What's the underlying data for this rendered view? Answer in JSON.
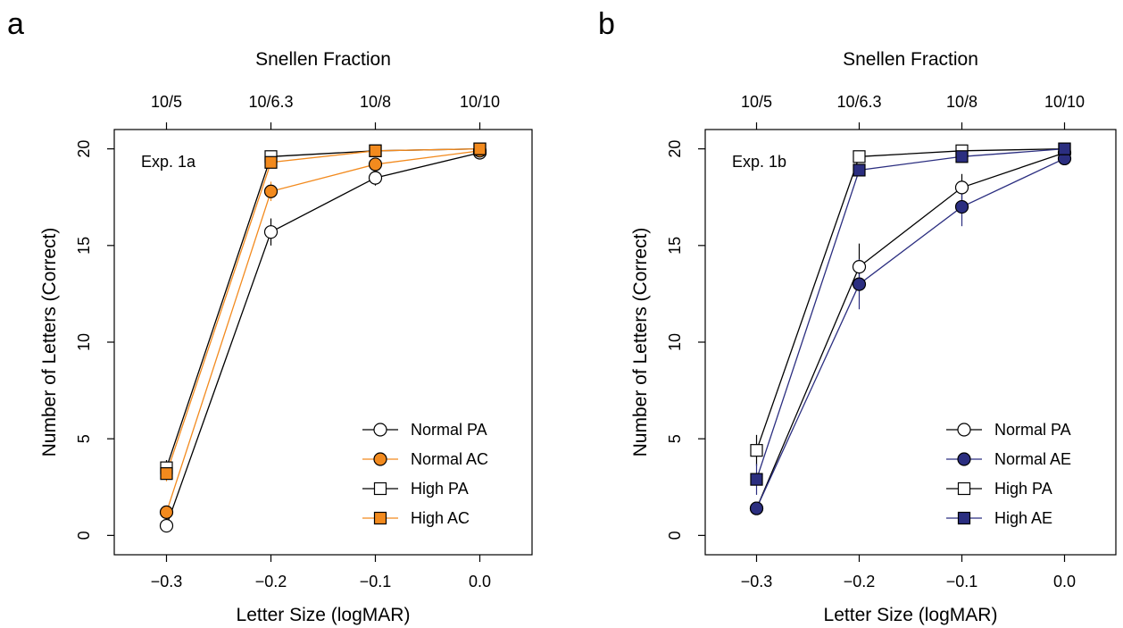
{
  "figure": {
    "panels": [
      "a",
      "b"
    ],
    "top_axis_label": "Snellen Fraction",
    "bottom_axis_label": "Letter Size (logMAR)",
    "left_axis_label": "Number of Letters (Correct)"
  },
  "colors": {
    "orange": "#f28a1e",
    "navy": "#2b2e80",
    "black": "#000000",
    "white": "#ffffff"
  },
  "chart_data": [
    {
      "type": "line",
      "panel": "a",
      "title": "Exp. 1a",
      "xlabel": "Letter Size (logMAR)",
      "ylabel": "Number of Letters (Correct)",
      "x2label": "Snellen Fraction",
      "x": [
        -0.3,
        -0.2,
        -0.1,
        0.0
      ],
      "xlim": [
        -0.35,
        0.05
      ],
      "ylim": [
        -1,
        21
      ],
      "xticks": [
        -0.3,
        -0.2,
        -0.1,
        0.0
      ],
      "xtick_labels": [
        "−0.3",
        "−0.2",
        "−0.1",
        "0.0"
      ],
      "x2tick_labels": [
        "10/5",
        "10/6.3",
        "10/8",
        "10/10"
      ],
      "yticks": [
        0,
        5,
        10,
        15,
        20
      ],
      "ytick_labels": [
        "0",
        "5",
        "10",
        "15",
        "20"
      ],
      "legend_position": "bottom-right",
      "series": [
        {
          "name": "Normal PA",
          "values": [
            0.5,
            15.7,
            18.5,
            19.8
          ],
          "err": [
            0.3,
            0.7,
            0.4,
            0.2
          ],
          "marker": "circle",
          "fill": "white",
          "color": "#000000"
        },
        {
          "name": "Normal AC",
          "values": [
            1.2,
            17.8,
            19.2,
            19.9
          ],
          "err": [
            0.3,
            0.5,
            0.3,
            0.1
          ],
          "marker": "circle",
          "fill": "orange",
          "color": "#f28a1e"
        },
        {
          "name": "High PA",
          "values": [
            3.5,
            19.6,
            19.9,
            20.0
          ],
          "err": [
            0.4,
            0.3,
            0.1,
            0.1
          ],
          "marker": "square",
          "fill": "white",
          "color": "#000000"
        },
        {
          "name": "High AC",
          "values": [
            3.2,
            19.3,
            19.9,
            20.0
          ],
          "err": [
            0.4,
            0.3,
            0.1,
            0.1
          ],
          "marker": "square",
          "fill": "orange",
          "color": "#f28a1e"
        }
      ]
    },
    {
      "type": "line",
      "panel": "b",
      "title": "Exp. 1b",
      "xlabel": "Letter Size (logMAR)",
      "ylabel": "Number of Letters (Correct)",
      "x2label": "Snellen Fraction",
      "x": [
        -0.3,
        -0.2,
        -0.1,
        0.0
      ],
      "xlim": [
        -0.35,
        0.05
      ],
      "ylim": [
        -1,
        21
      ],
      "xticks": [
        -0.3,
        -0.2,
        -0.1,
        0.0
      ],
      "xtick_labels": [
        "−0.3",
        "−0.2",
        "−0.1",
        "0.0"
      ],
      "x2tick_labels": [
        "10/5",
        "10/6.3",
        "10/8",
        "10/10"
      ],
      "yticks": [
        0,
        5,
        10,
        15,
        20
      ],
      "ytick_labels": [
        "0",
        "5",
        "10",
        "15",
        "20"
      ],
      "legend_position": "bottom-right",
      "series": [
        {
          "name": "Normal PA",
          "values": [
            1.4,
            13.9,
            18.0,
            19.8
          ],
          "err": [
            0.3,
            1.2,
            0.7,
            0.2
          ],
          "marker": "circle",
          "fill": "white",
          "color": "#000000"
        },
        {
          "name": "Normal AE",
          "values": [
            1.4,
            13.0,
            17.0,
            19.5
          ],
          "err": [
            0.3,
            1.3,
            1.0,
            0.3
          ],
          "marker": "circle",
          "fill": "navy",
          "color": "#2b2e80"
        },
        {
          "name": "High PA",
          "values": [
            4.4,
            19.6,
            19.9,
            20.0
          ],
          "err": [
            0.8,
            0.2,
            0.1,
            0.1
          ],
          "marker": "square",
          "fill": "white",
          "color": "#000000"
        },
        {
          "name": "High AE",
          "values": [
            2.9,
            18.9,
            19.6,
            20.0
          ],
          "err": [
            0.8,
            0.3,
            0.2,
            0.1
          ],
          "marker": "square",
          "fill": "navy",
          "color": "#2b2e80"
        }
      ]
    }
  ]
}
